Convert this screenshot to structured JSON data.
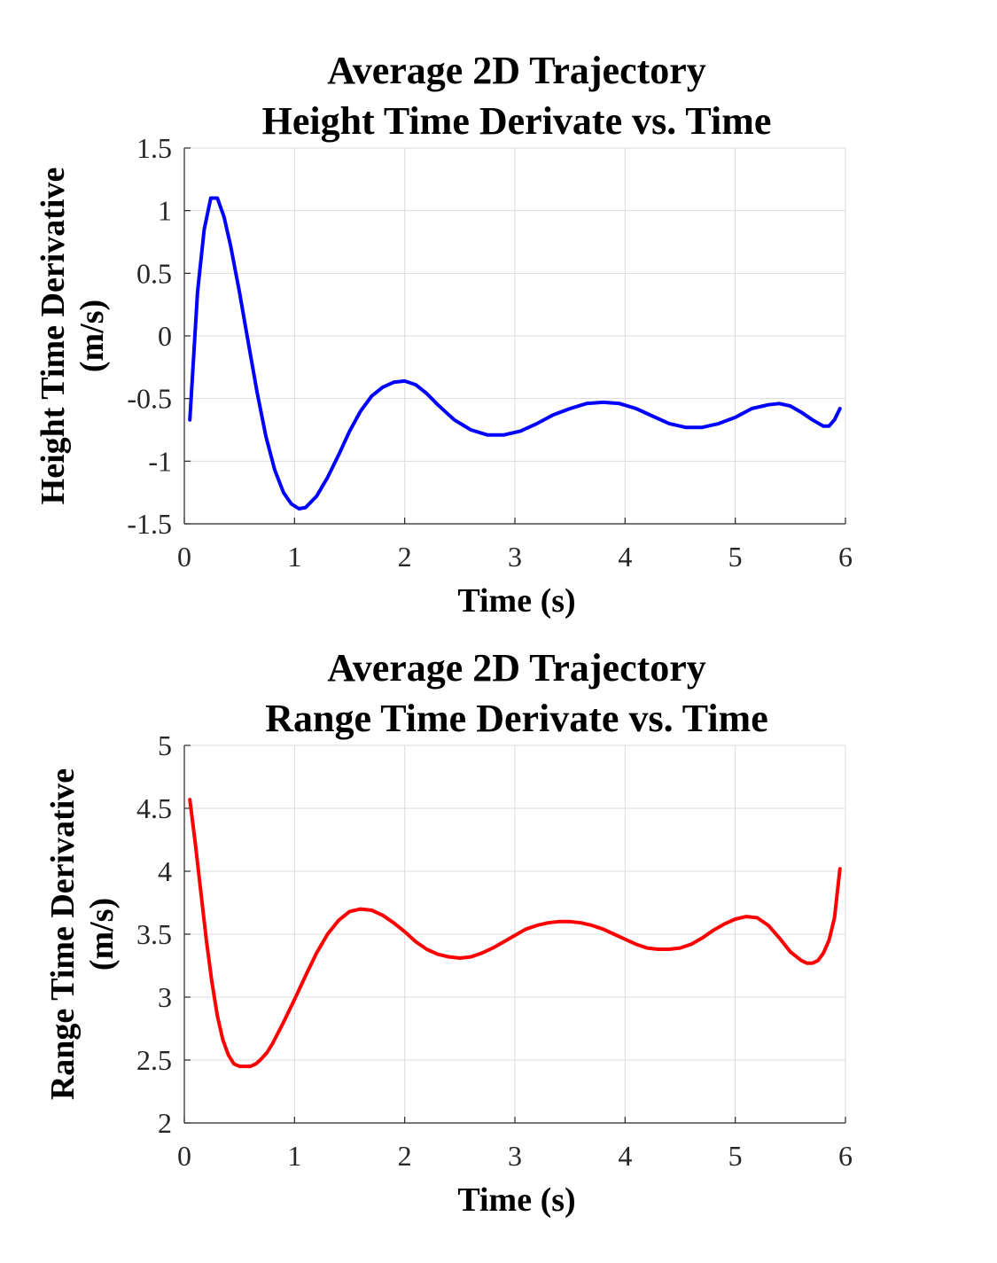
{
  "chart_data": [
    {
      "type": "line",
      "title": [
        "Average 2D Trajectory",
        "Height Time Derivate vs. Time"
      ],
      "xlabel": "Time (s)",
      "ylabel": [
        "Height Time Derivative",
        "(m/s)"
      ],
      "xlim": [
        0,
        6
      ],
      "ylim": [
        -1.5,
        1.5
      ],
      "xticks": [
        "0",
        "1",
        "2",
        "3",
        "4",
        "5",
        "6"
      ],
      "yticks": [
        "-1.5",
        "-1",
        "-0.5",
        "0",
        "0.5",
        "1",
        "1.5"
      ],
      "grid": true,
      "line_color": "#0000ff",
      "x": [
        0.05,
        0.12,
        0.18,
        0.24,
        0.3,
        0.36,
        0.42,
        0.5,
        0.58,
        0.66,
        0.74,
        0.82,
        0.9,
        0.97,
        1.04,
        1.1,
        1.2,
        1.3,
        1.4,
        1.5,
        1.6,
        1.7,
        1.8,
        1.9,
        2.0,
        2.1,
        2.2,
        2.3,
        2.45,
        2.6,
        2.75,
        2.9,
        3.05,
        3.2,
        3.35,
        3.5,
        3.65,
        3.8,
        3.95,
        4.1,
        4.25,
        4.4,
        4.55,
        4.7,
        4.85,
        5.0,
        5.15,
        5.3,
        5.4,
        5.5,
        5.6,
        5.7,
        5.8,
        5.85,
        5.9,
        5.95
      ],
      "y": [
        -0.67,
        0.35,
        0.85,
        1.1,
        1.1,
        0.95,
        0.72,
        0.35,
        -0.05,
        -0.45,
        -0.8,
        -1.07,
        -1.25,
        -1.34,
        -1.38,
        -1.37,
        -1.28,
        -1.13,
        -0.95,
        -0.76,
        -0.6,
        -0.48,
        -0.41,
        -0.37,
        -0.36,
        -0.39,
        -0.46,
        -0.55,
        -0.67,
        -0.75,
        -0.79,
        -0.79,
        -0.76,
        -0.7,
        -0.63,
        -0.58,
        -0.54,
        -0.53,
        -0.54,
        -0.58,
        -0.64,
        -0.7,
        -0.73,
        -0.73,
        -0.7,
        -0.65,
        -0.58,
        -0.55,
        -0.54,
        -0.56,
        -0.61,
        -0.67,
        -0.72,
        -0.72,
        -0.67,
        -0.58
      ]
    },
    {
      "type": "line",
      "title": [
        "Average 2D Trajectory",
        "Range Time Derivate vs. Time"
      ],
      "xlabel": "Time (s)",
      "ylabel": [
        "Range Time Derivative",
        "(m/s)"
      ],
      "xlim": [
        0,
        6
      ],
      "ylim": [
        2,
        5
      ],
      "xticks": [
        "0",
        "1",
        "2",
        "3",
        "4",
        "5",
        "6"
      ],
      "yticks": [
        "2",
        "2.5",
        "3",
        "3.5",
        "4",
        "4.5",
        "5"
      ],
      "grid": true,
      "line_color": "#ff0000",
      "x": [
        0.05,
        0.1,
        0.15,
        0.2,
        0.25,
        0.3,
        0.35,
        0.4,
        0.45,
        0.5,
        0.55,
        0.6,
        0.65,
        0.7,
        0.75,
        0.8,
        0.9,
        1.0,
        1.1,
        1.2,
        1.3,
        1.4,
        1.5,
        1.6,
        1.7,
        1.8,
        1.9,
        2.0,
        2.1,
        2.2,
        2.3,
        2.4,
        2.5,
        2.6,
        2.7,
        2.8,
        2.9,
        3.0,
        3.1,
        3.2,
        3.3,
        3.4,
        3.5,
        3.6,
        3.7,
        3.8,
        3.9,
        4.0,
        4.1,
        4.2,
        4.3,
        4.4,
        4.5,
        4.6,
        4.7,
        4.8,
        4.9,
        5.0,
        5.1,
        5.2,
        5.3,
        5.4,
        5.5,
        5.6,
        5.65,
        5.7,
        5.75,
        5.8,
        5.85,
        5.9,
        5.95
      ],
      "y": [
        4.57,
        4.22,
        3.83,
        3.45,
        3.12,
        2.85,
        2.66,
        2.54,
        2.47,
        2.45,
        2.45,
        2.45,
        2.47,
        2.51,
        2.56,
        2.63,
        2.8,
        2.98,
        3.17,
        3.35,
        3.5,
        3.61,
        3.68,
        3.7,
        3.69,
        3.65,
        3.59,
        3.52,
        3.44,
        3.38,
        3.34,
        3.32,
        3.31,
        3.32,
        3.35,
        3.39,
        3.44,
        3.49,
        3.54,
        3.57,
        3.59,
        3.6,
        3.6,
        3.59,
        3.57,
        3.54,
        3.5,
        3.46,
        3.42,
        3.39,
        3.38,
        3.38,
        3.39,
        3.42,
        3.47,
        3.53,
        3.58,
        3.62,
        3.64,
        3.63,
        3.57,
        3.47,
        3.36,
        3.29,
        3.27,
        3.27,
        3.29,
        3.35,
        3.45,
        3.63,
        4.02
      ]
    }
  ]
}
